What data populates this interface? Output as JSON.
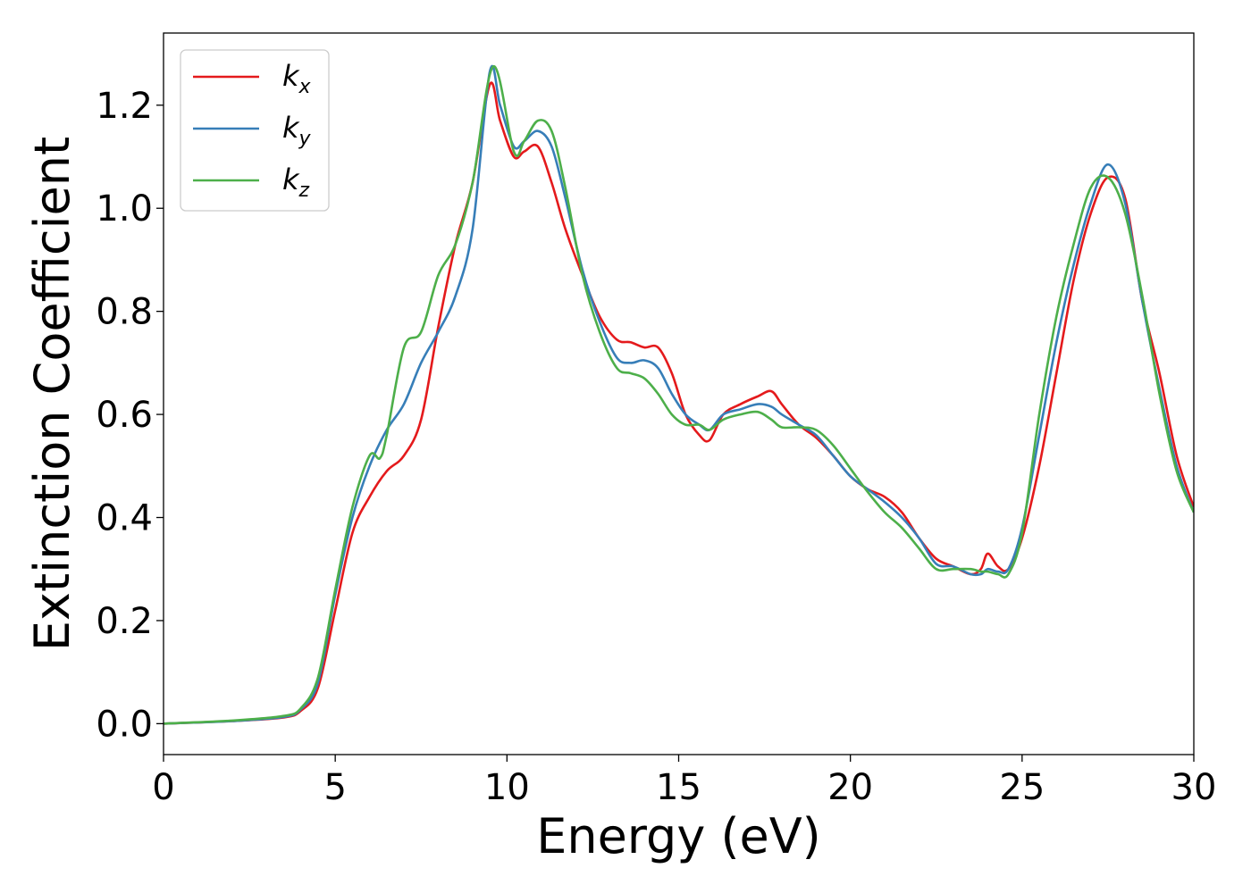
{
  "chart_data": {
    "type": "line",
    "xlabel": "Energy (eV)",
    "ylabel": "Extinction Coefficient",
    "xlim": [
      0,
      30
    ],
    "ylim": [
      -0.06,
      1.34
    ],
    "xticks": [
      0,
      5,
      10,
      15,
      20,
      25,
      30
    ],
    "xtick_labels": [
      "0",
      "5",
      "10",
      "15",
      "20",
      "25",
      "30"
    ],
    "yticks": [
      0.0,
      0.2,
      0.4,
      0.6,
      0.8,
      1.0,
      1.2
    ],
    "ytick_labels": [
      "0.0",
      "0.2",
      "0.4",
      "0.6",
      "0.8",
      "1.0",
      "1.2"
    ],
    "grid": false,
    "legend_position": "top-left",
    "series": [
      {
        "name": "k",
        "subscript": "x",
        "color": "#e41a1c",
        "x": [
          0,
          2,
          3.5,
          4,
          4.5,
          5,
          5.5,
          6,
          6.5,
          7,
          7.5,
          8,
          8.5,
          9,
          9.5,
          9.8,
          10.2,
          10.5,
          10.9,
          11.3,
          11.7,
          12.2,
          12.7,
          13.2,
          13.6,
          14.0,
          14.4,
          14.8,
          15.2,
          15.6,
          15.9,
          16.3,
          16.8,
          17.3,
          17.7,
          18.0,
          18.5,
          19.0,
          19.5,
          20.0,
          20.5,
          21.0,
          21.5,
          22.0,
          22.5,
          23.0,
          23.5,
          23.8,
          24.0,
          24.3,
          24.6,
          25.0,
          25.5,
          26.0,
          26.5,
          27.0,
          27.5,
          28.0,
          28.5,
          29.0,
          29.5,
          30.0
        ],
        "y": [
          0.0,
          0.005,
          0.012,
          0.025,
          0.07,
          0.22,
          0.37,
          0.44,
          0.49,
          0.52,
          0.59,
          0.77,
          0.93,
          1.05,
          1.24,
          1.17,
          1.1,
          1.11,
          1.12,
          1.05,
          0.96,
          0.87,
          0.79,
          0.745,
          0.74,
          0.73,
          0.73,
          0.68,
          0.6,
          0.56,
          0.55,
          0.6,
          0.62,
          0.635,
          0.645,
          0.62,
          0.58,
          0.555,
          0.52,
          0.48,
          0.455,
          0.44,
          0.41,
          0.36,
          0.32,
          0.305,
          0.29,
          0.3,
          0.33,
          0.305,
          0.3,
          0.36,
          0.5,
          0.68,
          0.86,
          0.99,
          1.06,
          1.02,
          0.82,
          0.68,
          0.52,
          0.42
        ]
      },
      {
        "name": "k",
        "subscript": "y",
        "color": "#377eb8",
        "x": [
          0,
          2,
          3.5,
          4,
          4.5,
          5,
          5.5,
          6,
          6.5,
          7,
          7.5,
          8,
          8.5,
          9,
          9.5,
          9.8,
          10.2,
          10.5,
          10.9,
          11.3,
          11.7,
          12.2,
          12.7,
          13.2,
          13.6,
          14.0,
          14.4,
          14.8,
          15.2,
          15.6,
          15.9,
          16.3,
          16.8,
          17.3,
          17.7,
          18.0,
          18.5,
          19.0,
          19.5,
          20.0,
          20.5,
          21.0,
          21.5,
          22.0,
          22.5,
          23.0,
          23.5,
          23.8,
          24.0,
          24.3,
          24.6,
          25.0,
          25.5,
          26.0,
          26.5,
          27.0,
          27.5,
          28.0,
          28.5,
          29.0,
          29.5,
          30.0
        ],
        "y": [
          0.0,
          0.005,
          0.013,
          0.028,
          0.08,
          0.25,
          0.4,
          0.5,
          0.57,
          0.62,
          0.7,
          0.76,
          0.83,
          0.96,
          1.265,
          1.2,
          1.12,
          1.13,
          1.15,
          1.12,
          1.02,
          0.88,
          0.78,
          0.71,
          0.7,
          0.705,
          0.69,
          0.64,
          0.6,
          0.58,
          0.57,
          0.6,
          0.61,
          0.62,
          0.615,
          0.6,
          0.58,
          0.56,
          0.52,
          0.48,
          0.455,
          0.43,
          0.4,
          0.36,
          0.31,
          0.305,
          0.29,
          0.29,
          0.3,
          0.295,
          0.3,
          0.38,
          0.56,
          0.74,
          0.89,
          1.01,
          1.085,
          1.01,
          0.82,
          0.65,
          0.5,
          0.41
        ]
      },
      {
        "name": "k",
        "subscript": "z",
        "color": "#4daf4a",
        "x": [
          0,
          2,
          3.5,
          4,
          4.5,
          5,
          5.5,
          6,
          6.3,
          6.5,
          7,
          7.5,
          8,
          8.5,
          9,
          9.6,
          10.2,
          10.5,
          10.9,
          11.3,
          11.7,
          12.2,
          12.7,
          13.2,
          13.6,
          14.0,
          14.4,
          14.8,
          15.2,
          15.6,
          15.9,
          16.3,
          16.8,
          17.3,
          17.7,
          18.0,
          18.5,
          19.0,
          19.5,
          20.0,
          20.5,
          21.0,
          21.5,
          22.0,
          22.5,
          23.0,
          23.5,
          23.8,
          24.0,
          24.3,
          24.6,
          25.0,
          25.5,
          26.0,
          26.5,
          27.0,
          27.5,
          28.0,
          28.5,
          29.0,
          29.5,
          30.0
        ],
        "y": [
          0.0,
          0.006,
          0.015,
          0.03,
          0.09,
          0.26,
          0.42,
          0.52,
          0.515,
          0.56,
          0.73,
          0.76,
          0.87,
          0.93,
          1.05,
          1.275,
          1.11,
          1.13,
          1.17,
          1.15,
          1.04,
          0.87,
          0.76,
          0.69,
          0.68,
          0.67,
          0.64,
          0.6,
          0.58,
          0.58,
          0.57,
          0.59,
          0.6,
          0.605,
          0.59,
          0.575,
          0.575,
          0.57,
          0.54,
          0.495,
          0.45,
          0.41,
          0.38,
          0.34,
          0.3,
          0.3,
          0.3,
          0.295,
          0.295,
          0.29,
          0.29,
          0.37,
          0.6,
          0.79,
          0.93,
          1.04,
          1.06,
          0.99,
          0.83,
          0.64,
          0.49,
          0.41
        ]
      }
    ]
  }
}
